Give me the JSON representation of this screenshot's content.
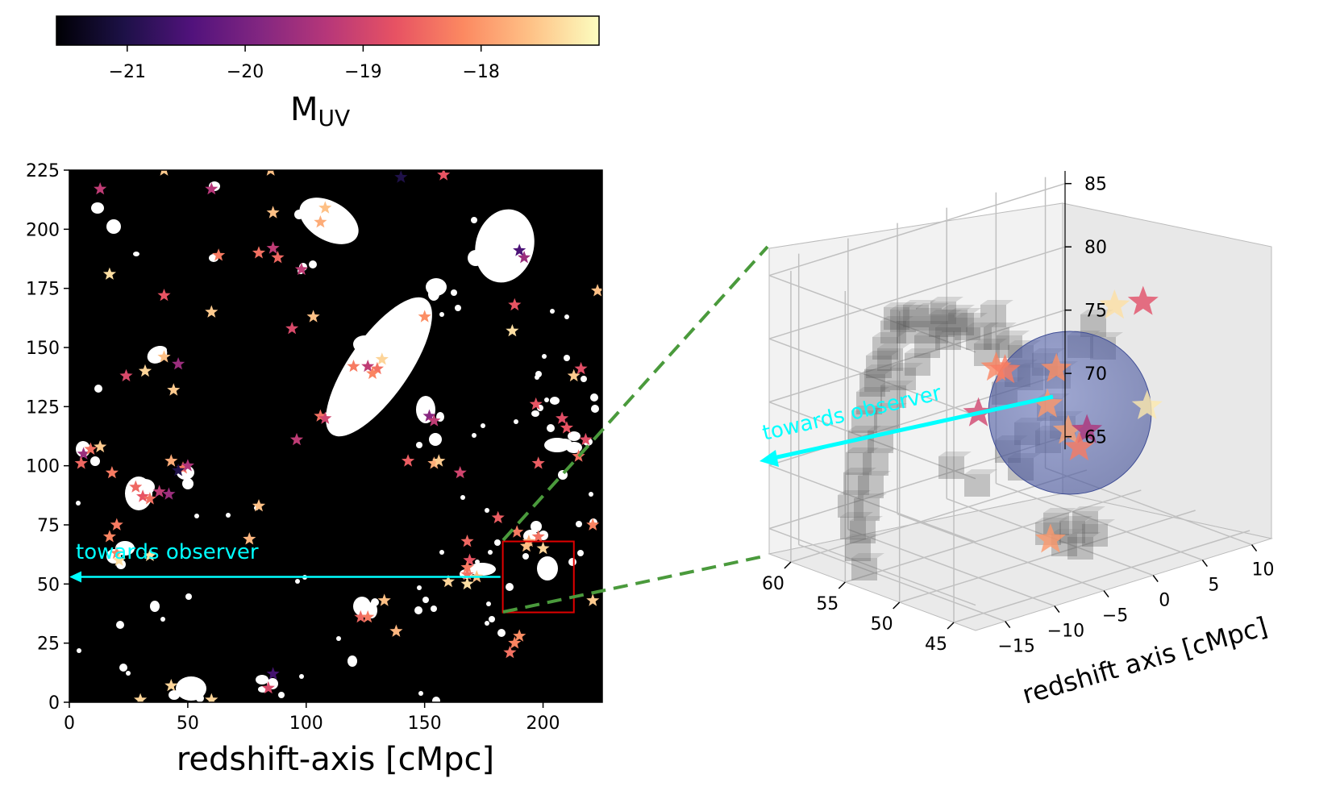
{
  "colorbar": {
    "label_main": "M",
    "label_sub": "UV",
    "ticks": [
      -21,
      -20,
      -19,
      -18
    ],
    "tick_labels": [
      "−21",
      "−20",
      "−19",
      "−18"
    ],
    "range": [
      -21.6,
      -17.0
    ],
    "colormap": "magma",
    "stops": [
      "#000004",
      "#1d1147",
      "#51127c",
      "#822681",
      "#b73779",
      "#e75263",
      "#fc8961",
      "#fec287",
      "#fcfdbf"
    ]
  },
  "chart_data": [
    {
      "type": "scatter",
      "title": "",
      "xlabel": "redshift-axis [cMpc]",
      "ylabel": "",
      "xlim": [
        0,
        225
      ],
      "ylim": [
        0,
        225
      ],
      "xticks": [
        0,
        50,
        100,
        150,
        200
      ],
      "yticks": [
        0,
        25,
        50,
        75,
        100,
        125,
        150,
        175,
        200,
        225
      ],
      "background": "binary map (white ionized regions on black)",
      "annotation": "towards observer",
      "arrow": {
        "from": [
          182,
          53
        ],
        "to": [
          0,
          53
        ],
        "color": "#00ffff"
      },
      "highlight_box": {
        "x": [
          183,
          213
        ],
        "y": [
          38,
          68
        ],
        "color": "#e00000"
      },
      "galaxies": [
        {
          "x": 13,
          "y": 217,
          "m": -19.2
        },
        {
          "x": 40,
          "y": 225,
          "m": -17.5
        },
        {
          "x": 60,
          "y": 217,
          "m": -19.3
        },
        {
          "x": 85,
          "y": 225,
          "m": -17.6
        },
        {
          "x": 140,
          "y": 222,
          "m": -21.0
        },
        {
          "x": 158,
          "y": 223,
          "m": -18.7
        },
        {
          "x": 86,
          "y": 207,
          "m": -17.6
        },
        {
          "x": 108,
          "y": 209,
          "m": -17.6
        },
        {
          "x": 106,
          "y": 203,
          "m": -17.8
        },
        {
          "x": 190,
          "y": 191,
          "m": -20.5
        },
        {
          "x": 192,
          "y": 188,
          "m": -19.6
        },
        {
          "x": 63,
          "y": 189,
          "m": -18.3
        },
        {
          "x": 80,
          "y": 190,
          "m": -18.4
        },
        {
          "x": 86,
          "y": 192,
          "m": -19.2
        },
        {
          "x": 88,
          "y": 188,
          "m": -18.5
        },
        {
          "x": 17,
          "y": 181,
          "m": -17.3
        },
        {
          "x": 98,
          "y": 183,
          "m": -19.2
        },
        {
          "x": 40,
          "y": 172,
          "m": -18.7
        },
        {
          "x": 60,
          "y": 165,
          "m": -17.5
        },
        {
          "x": 103,
          "y": 163,
          "m": -17.6
        },
        {
          "x": 94,
          "y": 158,
          "m": -18.9
        },
        {
          "x": 150,
          "y": 163,
          "m": -18.1
        },
        {
          "x": 188,
          "y": 168,
          "m": -18.7
        },
        {
          "x": 187,
          "y": 157,
          "m": -17.3
        },
        {
          "x": 223,
          "y": 174,
          "m": -17.6
        },
        {
          "x": 40,
          "y": 146,
          "m": -17.6
        },
        {
          "x": 46,
          "y": 143,
          "m": -19.6
        },
        {
          "x": 24,
          "y": 138,
          "m": -18.9
        },
        {
          "x": 32,
          "y": 140,
          "m": -17.4
        },
        {
          "x": 44,
          "y": 132,
          "m": -17.5
        },
        {
          "x": 120,
          "y": 142,
          "m": -18.3
        },
        {
          "x": 126,
          "y": 142,
          "m": -19.2
        },
        {
          "x": 130,
          "y": 141,
          "m": -18.4
        },
        {
          "x": 128,
          "y": 139,
          "m": -18.2
        },
        {
          "x": 132,
          "y": 145,
          "m": -17.4
        },
        {
          "x": 216,
          "y": 141,
          "m": -18.8
        },
        {
          "x": 213,
          "y": 138,
          "m": -17.5
        },
        {
          "x": 197,
          "y": 126,
          "m": -18.7
        },
        {
          "x": 106,
          "y": 121,
          "m": -18.4
        },
        {
          "x": 108,
          "y": 120,
          "m": -19.0
        },
        {
          "x": 152,
          "y": 121,
          "m": -19.8
        },
        {
          "x": 154,
          "y": 119,
          "m": -19.2
        },
        {
          "x": 208,
          "y": 120,
          "m": -18.8
        },
        {
          "x": 210,
          "y": 116,
          "m": -18.7
        },
        {
          "x": 96,
          "y": 111,
          "m": -19.2
        },
        {
          "x": 218,
          "y": 111,
          "m": -18.8
        },
        {
          "x": 6,
          "y": 105,
          "m": -19.6
        },
        {
          "x": 9,
          "y": 107,
          "m": -18.4
        },
        {
          "x": 13,
          "y": 108,
          "m": -17.5
        },
        {
          "x": 5,
          "y": 101,
          "m": -18.5
        },
        {
          "x": 43,
          "y": 102,
          "m": -17.8
        },
        {
          "x": 48,
          "y": 99,
          "m": -18.4
        },
        {
          "x": 50,
          "y": 100,
          "m": -19.4
        },
        {
          "x": 46,
          "y": 98,
          "m": -21.0
        },
        {
          "x": 143,
          "y": 102,
          "m": -18.6
        },
        {
          "x": 154,
          "y": 101,
          "m": -17.8
        },
        {
          "x": 156,
          "y": 102,
          "m": -17.5
        },
        {
          "x": 165,
          "y": 97,
          "m": -19.0
        },
        {
          "x": 198,
          "y": 101,
          "m": -18.6
        },
        {
          "x": 215,
          "y": 104,
          "m": -18.4
        },
        {
          "x": 18,
          "y": 97,
          "m": -18.3
        },
        {
          "x": 28,
          "y": 91,
          "m": -18.5
        },
        {
          "x": 31,
          "y": 87,
          "m": -18.7
        },
        {
          "x": 34,
          "y": 86,
          "m": -18.4
        },
        {
          "x": 38,
          "y": 89,
          "m": -19.2
        },
        {
          "x": 42,
          "y": 88,
          "m": -19.6
        },
        {
          "x": 80,
          "y": 83,
          "m": -17.6
        },
        {
          "x": 20,
          "y": 75,
          "m": -18.3
        },
        {
          "x": 17,
          "y": 70,
          "m": -18.2
        },
        {
          "x": 20,
          "y": 63,
          "m": -18.2
        },
        {
          "x": 21,
          "y": 60,
          "m": -17.3
        },
        {
          "x": 34,
          "y": 62,
          "m": -17.3
        },
        {
          "x": 76,
          "y": 69,
          "m": -17.7
        },
        {
          "x": 181,
          "y": 78,
          "m": -18.6
        },
        {
          "x": 189,
          "y": 72,
          "m": -18.3
        },
        {
          "x": 194,
          "y": 68,
          "m": -17.8
        },
        {
          "x": 198,
          "y": 70,
          "m": -18.4
        },
        {
          "x": 200,
          "y": 65,
          "m": -17.4
        },
        {
          "x": 193,
          "y": 66,
          "m": -17.6
        },
        {
          "x": 168,
          "y": 68,
          "m": -18.5
        },
        {
          "x": 169,
          "y": 60,
          "m": -18.7
        },
        {
          "x": 168,
          "y": 57,
          "m": -18.3
        },
        {
          "x": 168,
          "y": 54,
          "m": -18.4
        },
        {
          "x": 160,
          "y": 51,
          "m": -17.4
        },
        {
          "x": 168,
          "y": 50,
          "m": -17.3
        },
        {
          "x": 172,
          "y": 53,
          "m": -17.6
        },
        {
          "x": 221,
          "y": 75,
          "m": -18.2
        },
        {
          "x": 221,
          "y": 43,
          "m": -17.5
        },
        {
          "x": 123,
          "y": 36,
          "m": -18.5
        },
        {
          "x": 126,
          "y": 36,
          "m": -18.3
        },
        {
          "x": 133,
          "y": 43,
          "m": -17.6
        },
        {
          "x": 138,
          "y": 30,
          "m": -17.7
        },
        {
          "x": 190,
          "y": 28,
          "m": -18.1
        },
        {
          "x": 188,
          "y": 25,
          "m": -18.2
        },
        {
          "x": 186,
          "y": 21,
          "m": -18.4
        },
        {
          "x": 86,
          "y": 12,
          "m": -20.6
        },
        {
          "x": 84,
          "y": 6,
          "m": -18.9
        },
        {
          "x": 43,
          "y": 7,
          "m": -17.4
        },
        {
          "x": 60,
          "y": 1,
          "m": -17.4
        },
        {
          "x": 30,
          "y": 1,
          "m": -17.4
        }
      ]
    },
    {
      "type": "scatter3d",
      "title": "",
      "xlabel": "redshift axis [cMpc]",
      "ylabel": "",
      "zlabel": "",
      "xticks": [
        -15,
        -10,
        -5,
        0,
        5,
        10
      ],
      "yticks": [
        60,
        55,
        50,
        45
      ],
      "zticks": [
        65,
        70,
        75,
        80,
        85
      ],
      "annotation": "towards observer",
      "sphere": {
        "fill": "#4f5fa8",
        "opacity": 0.55
      },
      "voxels": "grey semi-transparent cubes tracing the ionized region",
      "galaxies": [
        {
          "x": 6,
          "y": 52,
          "z": 80,
          "m": -17.3
        },
        {
          "x": 10,
          "y": 53,
          "z": 79,
          "m": -18.8
        },
        {
          "x": -6,
          "y": 52,
          "z": 78,
          "m": -18.2
        },
        {
          "x": -4,
          "y": 53,
          "z": 77,
          "m": -18.3
        },
        {
          "x": -1,
          "y": 51,
          "z": 77,
          "m": -18.1
        },
        {
          "x": -10,
          "y": 50,
          "z": 76,
          "m": -19.0
        },
        {
          "x": -3,
          "y": 50,
          "z": 75,
          "m": -18.0
        },
        {
          "x": -2,
          "y": 49,
          "z": 73,
          "m": -17.9
        },
        {
          "x": 1,
          "y": 50,
          "z": 72,
          "m": -19.4
        },
        {
          "x": 6,
          "y": 49,
          "z": 73,
          "m": -17.2
        },
        {
          "x": -2,
          "y": 48,
          "z": 72,
          "m": -18.3
        },
        {
          "x": -6,
          "y": 47,
          "z": 66,
          "m": -18.0
        }
      ]
    }
  ]
}
